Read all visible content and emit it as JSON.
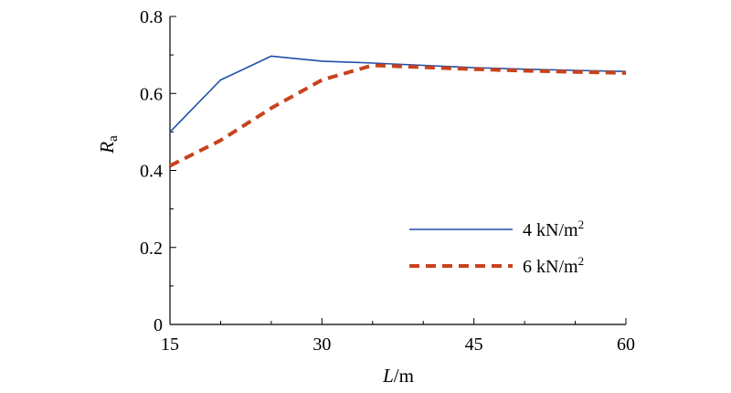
{
  "chart_data": {
    "type": "line",
    "x_axis": {
      "label_main": "L",
      "label_unit": "/m",
      "lim": [
        15,
        60
      ],
      "ticks": [
        15,
        30,
        45,
        60
      ]
    },
    "y_axis": {
      "label_main": "R",
      "label_sub": "a",
      "lim": [
        0,
        0.8
      ],
      "ticks": [
        "0",
        "0.2",
        "0.4",
        "0.6",
        "0.8"
      ]
    },
    "grid": false,
    "legend_position": "lower-right",
    "series": [
      {
        "name_main": "4 kN/m",
        "name_sup": "2",
        "color": "#1f4fa8",
        "style": "solid",
        "x": [
          15,
          20,
          25,
          30,
          35,
          40,
          45,
          50,
          55,
          60
        ],
        "y": [
          0.5,
          0.635,
          0.697,
          0.684,
          0.679,
          0.673,
          0.667,
          0.663,
          0.66,
          0.657
        ]
      },
      {
        "name_main": "6 kN/m",
        "name_sup": "2",
        "color": "#c8421e",
        "style": "dashed",
        "x": [
          15,
          20,
          25,
          30,
          35,
          40,
          45,
          50,
          55,
          60
        ],
        "y": [
          0.412,
          0.478,
          0.562,
          0.635,
          0.673,
          0.668,
          0.663,
          0.659,
          0.656,
          0.653
        ]
      }
    ]
  }
}
